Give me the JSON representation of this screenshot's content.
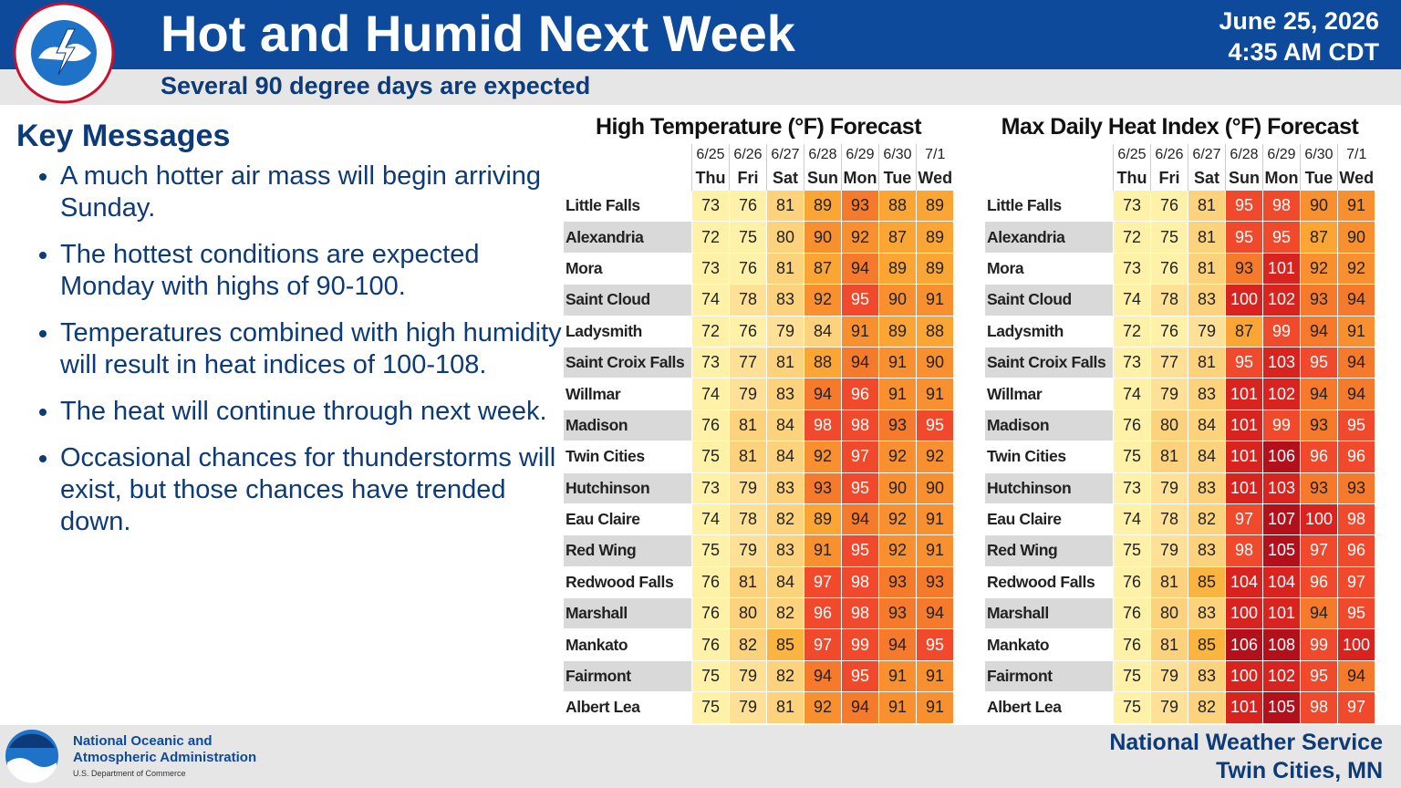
{
  "header": {
    "title": "Hot and Humid Next Week",
    "subtitle": "Several 90 degree days are expected",
    "date": "June 25, 2026",
    "time": "4:35 AM CDT"
  },
  "key_messages": {
    "heading": "Key Messages",
    "items": [
      "A much hotter air mass will begin arriving Sunday.",
      "The hottest conditions are expected Monday with highs of 90-100.",
      "Temperatures combined with high humidity will result in heat indices of 100-108.",
      "The heat will continue through next week.",
      "Occasional chances for thunderstorms will exist, but those chances have trended down."
    ]
  },
  "tables": [
    {
      "title": "High Temperature (°F) Forecast",
      "dates": [
        "6/25",
        "6/26",
        "6/27",
        "6/28",
        "6/29",
        "6/30",
        "7/1"
      ],
      "days": [
        "Thu",
        "Fri",
        "Sat",
        "Sun",
        "Mon",
        "Tue",
        "Wed"
      ],
      "rows": [
        {
          "name": "Little Falls",
          "values": [
            73,
            76,
            81,
            89,
            93,
            88,
            89
          ]
        },
        {
          "name": "Alexandria",
          "values": [
            72,
            75,
            80,
            90,
            92,
            87,
            89
          ]
        },
        {
          "name": "Mora",
          "values": [
            73,
            76,
            81,
            87,
            94,
            89,
            89
          ]
        },
        {
          "name": "Saint Cloud",
          "values": [
            74,
            78,
            83,
            92,
            95,
            90,
            91
          ]
        },
        {
          "name": "Ladysmith",
          "values": [
            72,
            76,
            79,
            84,
            91,
            89,
            88
          ]
        },
        {
          "name": "Saint Croix Falls",
          "values": [
            73,
            77,
            81,
            88,
            94,
            91,
            90
          ]
        },
        {
          "name": "Willmar",
          "values": [
            74,
            79,
            83,
            94,
            96,
            91,
            91
          ]
        },
        {
          "name": "Madison",
          "values": [
            76,
            81,
            84,
            98,
            98,
            93,
            95
          ]
        },
        {
          "name": "Twin Cities",
          "values": [
            75,
            81,
            84,
            92,
            97,
            92,
            92
          ]
        },
        {
          "name": "Hutchinson",
          "values": [
            73,
            79,
            83,
            93,
            95,
            90,
            90
          ]
        },
        {
          "name": "Eau Claire",
          "values": [
            74,
            78,
            82,
            89,
            94,
            92,
            91
          ]
        },
        {
          "name": "Red Wing",
          "values": [
            75,
            79,
            83,
            91,
            95,
            92,
            91
          ]
        },
        {
          "name": "Redwood Falls",
          "values": [
            76,
            81,
            84,
            97,
            98,
            93,
            93
          ]
        },
        {
          "name": "Marshall",
          "values": [
            76,
            80,
            82,
            96,
            98,
            93,
            94
          ]
        },
        {
          "name": "Mankato",
          "values": [
            76,
            82,
            85,
            97,
            99,
            94,
            95
          ]
        },
        {
          "name": "Fairmont",
          "values": [
            75,
            79,
            82,
            94,
            95,
            91,
            91
          ]
        },
        {
          "name": "Albert Lea",
          "values": [
            75,
            79,
            81,
            92,
            94,
            91,
            91
          ]
        }
      ]
    },
    {
      "title": "Max Daily Heat Index (°F) Forecast",
      "dates": [
        "6/25",
        "6/26",
        "6/27",
        "6/28",
        "6/29",
        "6/30",
        "7/1"
      ],
      "days": [
        "Thu",
        "Fri",
        "Sat",
        "Sun",
        "Mon",
        "Tue",
        "Wed"
      ],
      "rows": [
        {
          "name": "Little Falls",
          "values": [
            73,
            76,
            81,
            95,
            98,
            90,
            91
          ]
        },
        {
          "name": "Alexandria",
          "values": [
            72,
            75,
            81,
            95,
            95,
            87,
            90
          ]
        },
        {
          "name": "Mora",
          "values": [
            73,
            76,
            81,
            93,
            101,
            92,
            92
          ]
        },
        {
          "name": "Saint Cloud",
          "values": [
            74,
            78,
            83,
            100,
            102,
            93,
            94
          ]
        },
        {
          "name": "Ladysmith",
          "values": [
            72,
            76,
            79,
            87,
            99,
            94,
            91
          ]
        },
        {
          "name": "Saint Croix Falls",
          "values": [
            73,
            77,
            81,
            95,
            103,
            95,
            94
          ]
        },
        {
          "name": "Willmar",
          "values": [
            74,
            79,
            83,
            101,
            102,
            94,
            94
          ]
        },
        {
          "name": "Madison",
          "values": [
            76,
            80,
            84,
            101,
            99,
            93,
            95
          ]
        },
        {
          "name": "Twin Cities",
          "values": [
            75,
            81,
            84,
            101,
            106,
            96,
            96
          ]
        },
        {
          "name": "Hutchinson",
          "values": [
            73,
            79,
            83,
            101,
            103,
            93,
            93
          ]
        },
        {
          "name": "Eau Claire",
          "values": [
            74,
            78,
            82,
            97,
            107,
            100,
            98
          ]
        },
        {
          "name": "Red Wing",
          "values": [
            75,
            79,
            83,
            98,
            105,
            97,
            96
          ]
        },
        {
          "name": "Redwood Falls",
          "values": [
            76,
            81,
            85,
            104,
            104,
            96,
            97
          ]
        },
        {
          "name": "Marshall",
          "values": [
            76,
            80,
            83,
            100,
            101,
            94,
            95
          ]
        },
        {
          "name": "Mankato",
          "values": [
            76,
            81,
            85,
            106,
            108,
            99,
            100
          ]
        },
        {
          "name": "Fairmont",
          "values": [
            75,
            79,
            83,
            100,
            102,
            95,
            94
          ]
        },
        {
          "name": "Albert Lea",
          "values": [
            75,
            79,
            82,
            101,
            105,
            98,
            97
          ]
        }
      ]
    }
  ],
  "footer": {
    "agency_line1": "National Oceanic and",
    "agency_line2": "Atmospheric Administration",
    "department": "U.S. Department of Commerce",
    "office": "National Weather Service",
    "location": "Twin Cities, MN"
  }
}
